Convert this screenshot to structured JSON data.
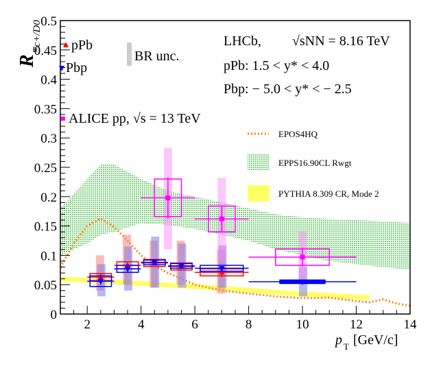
{
  "chart_data": {
    "type": "scatter",
    "title": "",
    "ylabel_main": "R",
    "ylabel_sub": "Ξc+/D0",
    "xlabel": "p",
    "xlabel_sub": "T",
    "xlabel_unit": "[GeV/c]",
    "xlim": [
      1,
      14
    ],
    "ylim": [
      0,
      0.5
    ],
    "x_ticks": [
      2,
      4,
      6,
      8,
      10,
      12,
      14
    ],
    "x_tick_labels": [
      "2",
      "4",
      "6",
      "8",
      "10",
      "12",
      "14"
    ],
    "y_ticks": [
      0,
      0.05,
      0.1,
      0.15,
      0.2,
      0.25,
      0.3,
      0.35,
      0.4,
      0.45,
      0.5
    ],
    "y_tick_labels": [
      "0",
      "0.05",
      "0.1",
      "0.15",
      "0.2",
      "0.25",
      "0.3",
      "0.35",
      "0.4",
      "0.45",
      "0.5"
    ],
    "annotations": {
      "experiment": "LHCb,",
      "energy": "√sNN = 8.16 TeV",
      "ppb_range": "pPb:  1.5 < y* < 4.0",
      "pbp_range": "Pbp: − 5.0 < y* < − 2.5",
      "br_unc": "BR unc."
    },
    "legend": {
      "ppb": "pPb",
      "pbp": "Pbp",
      "alice": "ALICE pp, √s = 13 TeV",
      "epos": "EPOS4HQ",
      "epps": "EPPS16.90CL Rwgt",
      "pythia": "PYTHIA 8.309 CR, Mode 2"
    },
    "colors": {
      "ppb": "#ff0000",
      "pbp": "#0000ff",
      "alice": "#ff00ff",
      "epos": "#ff7f00",
      "epps": "#7fcf7f",
      "pythia": "#ffff66",
      "br_band": "#c0c0c0"
    },
    "series": [
      {
        "name": "pPb",
        "points": [
          {
            "x": 2.5,
            "xlo": 2.0,
            "xhi": 3.0,
            "y": 0.063,
            "stat": 0.004,
            "syst": 0.006,
            "br_lo": 0.04,
            "br_hi": 0.1
          },
          {
            "x": 3.5,
            "xlo": 3.0,
            "xhi": 4.0,
            "y": 0.083,
            "stat": 0.004,
            "syst": 0.006,
            "br_lo": 0.05,
            "br_hi": 0.135
          },
          {
            "x": 4.5,
            "xlo": 4.0,
            "xhi": 5.0,
            "y": 0.087,
            "stat": 0.004,
            "syst": 0.006,
            "br_lo": 0.045,
            "br_hi": 0.125
          },
          {
            "x": 5.5,
            "xlo": 5.0,
            "xhi": 6.0,
            "y": 0.081,
            "stat": 0.004,
            "syst": 0.006,
            "br_lo": 0.05,
            "br_hi": 0.125
          },
          {
            "x": 7.0,
            "xlo": 6.0,
            "xhi": 8.0,
            "y": 0.071,
            "stat": 0.008,
            "syst": 0.006,
            "br_lo": 0.035,
            "br_hi": 0.11
          }
        ]
      },
      {
        "name": "Pbp",
        "points": [
          {
            "x": 2.5,
            "xlo": 2.0,
            "xhi": 3.0,
            "y": 0.056,
            "stat": 0.006,
            "syst": 0.009,
            "br_lo": 0.03,
            "br_hi": 0.085
          },
          {
            "x": 3.5,
            "xlo": 3.0,
            "xhi": 4.0,
            "y": 0.077,
            "stat": 0.004,
            "syst": 0.006,
            "br_lo": 0.04,
            "br_hi": 0.115
          },
          {
            "x": 4.5,
            "xlo": 4.0,
            "xhi": 5.0,
            "y": 0.088,
            "stat": 0.003,
            "syst": 0.004,
            "br_lo": 0.045,
            "br_hi": 0.132
          },
          {
            "x": 5.5,
            "xlo": 5.0,
            "xhi": 6.0,
            "y": 0.082,
            "stat": 0.003,
            "syst": 0.004,
            "br_lo": 0.045,
            "br_hi": 0.12
          },
          {
            "x": 7.0,
            "xlo": 6.0,
            "xhi": 8.0,
            "y": 0.078,
            "stat": 0.004,
            "syst": 0.005,
            "br_lo": 0.045,
            "br_hi": 0.117
          },
          {
            "x": 10.0,
            "xlo": 8.0,
            "xhi": 12.0,
            "y": 0.055,
            "stat": 0.003,
            "syst": 0.003,
            "br_lo": 0.03,
            "br_hi": 0.08
          }
        ]
      },
      {
        "name": "ALICE pp",
        "points": [
          {
            "x": 5.0,
            "xlo": 4.0,
            "xhi": 6.0,
            "y": 0.198,
            "stat": 0.035,
            "syst": 0.032,
            "br_lo": 0.11,
            "br_hi": 0.283
          },
          {
            "x": 7.0,
            "xlo": 6.0,
            "xhi": 8.0,
            "y": 0.162,
            "stat": 0.022,
            "syst": 0.022,
            "br_lo": 0.09,
            "br_hi": 0.232
          },
          {
            "x": 10.0,
            "xlo": 8.0,
            "xhi": 12.0,
            "y": 0.097,
            "stat": 0.016,
            "syst": 0.014,
            "br_lo": 0.055,
            "br_hi": 0.14
          }
        ]
      }
    ],
    "models": {
      "epos": {
        "x": [
          1,
          1.5,
          2,
          2.5,
          3,
          3.5,
          4,
          4.5,
          5,
          5.5,
          6,
          7,
          8,
          9,
          10,
          11,
          12,
          12.5,
          13,
          13.5,
          14
        ],
        "y": [
          0.08,
          0.12,
          0.15,
          0.163,
          0.148,
          0.125,
          0.1,
          0.082,
          0.07,
          0.06,
          0.05,
          0.04,
          0.035,
          0.03,
          0.027,
          0.028,
          0.022,
          0.02,
          0.025,
          0.018,
          0.014
        ]
      },
      "epps": {
        "x": [
          1,
          2,
          2.5,
          3,
          4,
          5,
          6,
          7,
          8,
          9,
          10,
          11,
          12,
          13,
          14
        ],
        "lo": [
          0.1,
          0.12,
          0.135,
          0.14,
          0.155,
          0.152,
          0.145,
          0.135,
          0.125,
          0.11,
          0.1,
          0.09,
          0.085,
          0.08,
          0.075
        ],
        "hi": [
          0.18,
          0.23,
          0.255,
          0.255,
          0.23,
          0.21,
          0.2,
          0.19,
          0.18,
          0.17,
          0.165,
          0.162,
          0.16,
          0.158,
          0.155
        ]
      },
      "pythia": {
        "x": [
          1,
          4,
          7,
          10,
          12.5
        ],
        "lo": [
          0.056,
          0.048,
          0.04,
          0.03,
          0.024
        ],
        "hi": [
          0.064,
          0.056,
          0.048,
          0.038,
          0.032
        ]
      }
    }
  }
}
